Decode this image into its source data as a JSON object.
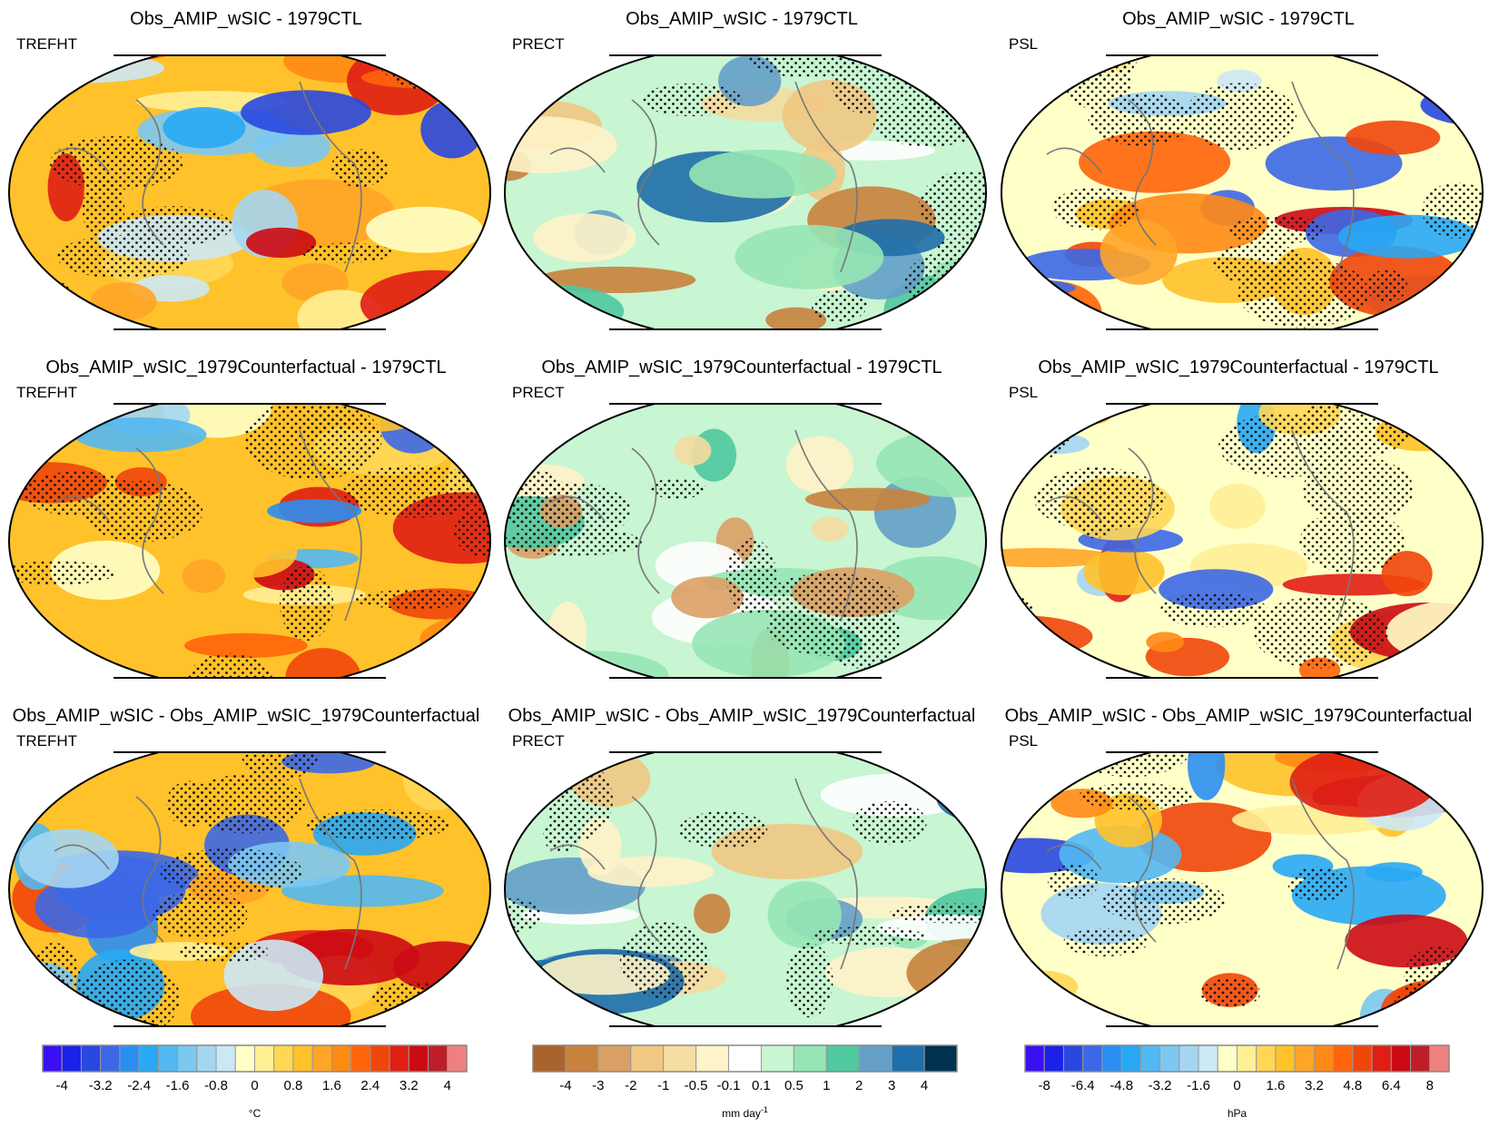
{
  "panels": [
    {
      "title": "Obs_AMIP_wSIC - 1979CTL",
      "variable": "TREFHT"
    },
    {
      "title": "Obs_AMIP_wSIC - 1979CTL",
      "variable": "PRECT"
    },
    {
      "title": "Obs_AMIP_wSIC - 1979CTL",
      "variable": "PSL"
    },
    {
      "title": "Obs_AMIP_wSIC_1979Counterfactual - 1979CTL",
      "variable": "TREFHT"
    },
    {
      "title": "Obs_AMIP_wSIC_1979Counterfactual - 1979CTL",
      "variable": "PRECT"
    },
    {
      "title": "Obs_AMIP_wSIC_1979Counterfactual - 1979CTL",
      "variable": "PSL"
    },
    {
      "title": "Obs_AMIP_wSIC - Obs_AMIP_wSIC_1979Counterfactual",
      "variable": "TREFHT"
    },
    {
      "title": "Obs_AMIP_wSIC - Obs_AMIP_wSIC_1979Counterfactual",
      "variable": "PRECT"
    },
    {
      "title": "Obs_AMIP_wSIC - Obs_AMIP_wSIC_1979Counterfactual",
      "variable": "PSL"
    }
  ],
  "colorbars": [
    {
      "unit": "°C",
      "ticks": [
        -4,
        -3.2,
        -2.4,
        -1.6,
        -0.8,
        0,
        0.8,
        1.6,
        2.4,
        3.2,
        4
      ],
      "colors": [
        "#3a0ff2",
        "#1a22e8",
        "#2848e0",
        "#3c68e6",
        "#2a8ef0",
        "#28a8f5",
        "#52b8f2",
        "#7cc8f2",
        "#a4d6f2",
        "#cce8f5",
        "#ffffc8",
        "#fff096",
        "#ffd755",
        "#ffc22a",
        "#ffa528",
        "#ff8a14",
        "#ff640a",
        "#f0460a",
        "#e01e14",
        "#cc0a14",
        "#be1e28",
        "#f08080"
      ]
    },
    {
      "unit": "mm day",
      "unit_superscript": "-1",
      "ticks": [
        -4,
        -3,
        -2,
        -1,
        -0.5,
        -0.1,
        0.1,
        0.5,
        1,
        2,
        3,
        4
      ],
      "colors": [
        "#a8642a",
        "#c8823c",
        "#dca064",
        "#f0c882",
        "#f5dca0",
        "#fff3c8",
        "#ffffff",
        "#c8f5d2",
        "#96e6b4",
        "#50c8a0",
        "#64a0c8",
        "#1e6eaa",
        "#003250"
      ]
    },
    {
      "unit": "hPa",
      "ticks": [
        -8,
        -6.4,
        -4.8,
        -3.2,
        -1.6,
        0,
        1.6,
        3.2,
        4.8,
        6.4,
        8
      ],
      "colors": [
        "#3a0ff2",
        "#1a22e8",
        "#2848e0",
        "#3c68e6",
        "#2a8ef0",
        "#28a8f5",
        "#52b8f2",
        "#7cc8f2",
        "#a4d6f2",
        "#cce8f5",
        "#ffffc8",
        "#fff096",
        "#ffd755",
        "#ffc22a",
        "#ffa528",
        "#ff8a14",
        "#ff640a",
        "#f0460a",
        "#e01e14",
        "#cc0a14",
        "#be1e28",
        "#f08080"
      ]
    }
  ]
}
